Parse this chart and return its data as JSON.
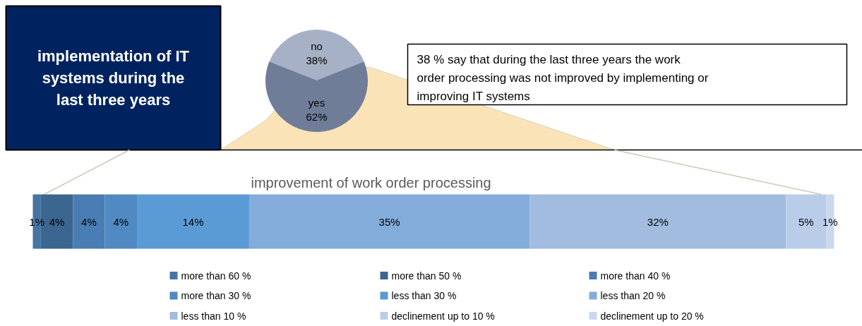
{
  "chart_data": [
    {
      "type": "pie",
      "title": "implementation of IT systems during the last three years",
      "categories": [
        "no",
        "yes"
      ],
      "values": [
        38,
        62
      ],
      "colors": [
        "#a7b1c6",
        "#6f7d99"
      ],
      "value_labels": [
        "38%",
        "62%"
      ],
      "annotations": [
        "38 % say that during the last three years the work order processing was not improved by implementing or improving IT systems"
      ]
    },
    {
      "type": "bar",
      "orientation": "horizontal",
      "stacked": true,
      "title": "improvement of work order processing",
      "categories": [
        null
      ],
      "legend": "bottom",
      "series": [
        {
          "name": "more than 60 %",
          "color": "#4674a5",
          "values": [
            1
          ],
          "value_labels": [
            "1%"
          ]
        },
        {
          "name": "more than 50 %",
          "color": "#3a6690",
          "values": [
            4
          ],
          "value_labels": [
            "4%"
          ]
        },
        {
          "name": "more than 40 %",
          "color": "#4a7db3",
          "values": [
            4
          ],
          "value_labels": [
            "4%"
          ]
        },
        {
          "name": "more than 30 %",
          "color": "#518ac2",
          "values": [
            4
          ],
          "value_labels": [
            "4%"
          ]
        },
        {
          "name": "less than 30 %",
          "color": "#5b9bd5",
          "values": [
            14
          ],
          "value_labels": [
            "14%"
          ]
        },
        {
          "name": "less than 20 %",
          "color": "#83acdb",
          "values": [
            35
          ],
          "value_labels": [
            "35%"
          ]
        },
        {
          "name": "less than 10 %",
          "color": "#a2bce0",
          "values": [
            32
          ],
          "value_labels": [
            "32%"
          ]
        },
        {
          "name": "declinement up to 10 %",
          "color": "#b9cde9",
          "values": [
            5
          ],
          "value_labels": [
            "5%"
          ]
        },
        {
          "name": "declinement up to 20 %",
          "color": "#cad9ee",
          "values": [
            1
          ],
          "value_labels": [
            "1%"
          ]
        }
      ]
    }
  ]
}
